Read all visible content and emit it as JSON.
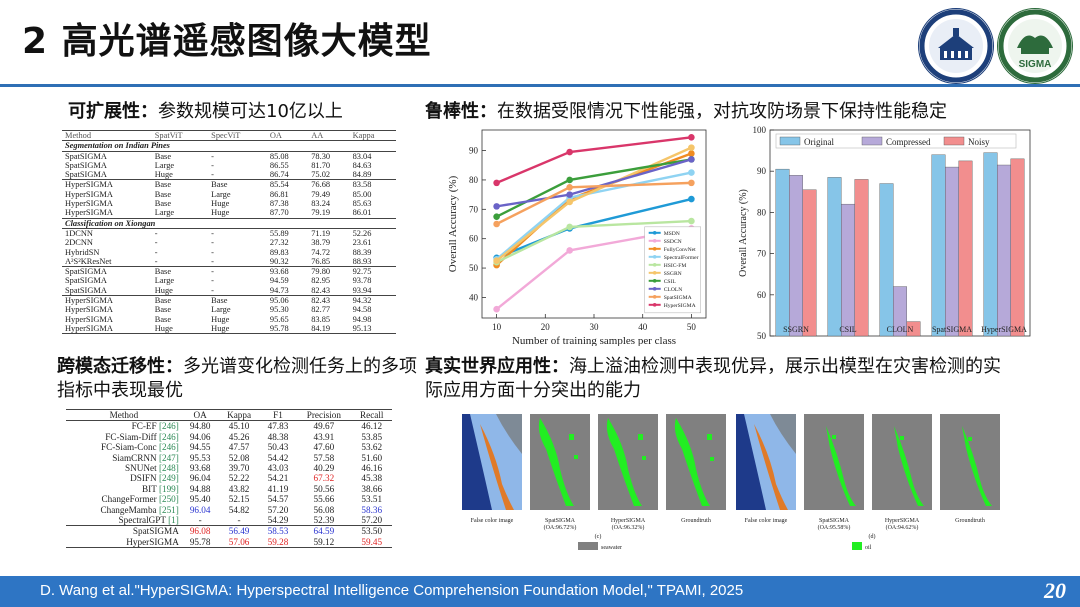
{
  "title": "2 高光谱遥感图像大模型",
  "colors": {
    "accent": "#2e75c4",
    "red": "#e02424",
    "blue": "#2a34d0"
  },
  "logos": [
    {
      "name": "whu-logo"
    },
    {
      "name": "sigma-logo",
      "text": "SIGMA"
    }
  ],
  "scalability": {
    "label": "可扩展性：",
    "text": "参数规模可达10亿以上"
  },
  "table1": {
    "headers": [
      "Method",
      "SpatViT",
      "SpecViT",
      "OA",
      "AA",
      "Kappa"
    ],
    "sec1": "Segmentation on Indian Pines",
    "rows1": [
      [
        "SpatSIGMA",
        "Base",
        "-",
        "85.08",
        "78.30",
        "83.04"
      ],
      [
        "SpatSIGMA",
        "Large",
        "-",
        "86.55",
        "81.70",
        "84.63"
      ],
      [
        "SpatSIGMA",
        "Huge",
        "-",
        "86.74",
        "75.02",
        "84.89"
      ],
      [
        "HyperSIGMA",
        "Base",
        "Base",
        "85.54",
        "76.68",
        "83.58"
      ],
      [
        "HyperSIGMA",
        "Base",
        "Large",
        "86.81",
        "79.49",
        "85.00"
      ],
      [
        "HyperSIGMA",
        "Base",
        "Huge",
        "87.38",
        "83.24",
        "85.63"
      ],
      [
        "HyperSIGMA",
        "Large",
        "Huge",
        "87.70",
        "79.19",
        "86.01"
      ]
    ],
    "sec2": "Classification on Xiongan",
    "rows2": [
      [
        "1DCNN",
        "-",
        "-",
        "55.89",
        "71.19",
        "52.26"
      ],
      [
        "2DCNN",
        "-",
        "-",
        "27.32",
        "38.79",
        "23.61"
      ],
      [
        "HybridSN",
        "-",
        "-",
        "89.83",
        "74.72",
        "88.39"
      ],
      [
        "A²S²KResNet",
        "-",
        "-",
        "90.32",
        "76.85",
        "88.93"
      ],
      [
        "SpatSIGMA",
        "Base",
        "-",
        "93.68",
        "79.80",
        "92.75"
      ],
      [
        "SpatSIGMA",
        "Large",
        "-",
        "94.59",
        "82.95",
        "93.78"
      ],
      [
        "SpatSIGMA",
        "Huge",
        "-",
        "94.73",
        "82.43",
        "93.94"
      ],
      [
        "HyperSIGMA",
        "Base",
        "Base",
        "95.06",
        "82.43",
        "94.32"
      ],
      [
        "HyperSIGMA",
        "Base",
        "Large",
        "95.30",
        "82.77",
        "94.58"
      ],
      [
        "HyperSIGMA",
        "Base",
        "Huge",
        "95.65",
        "83.85",
        "94.98"
      ],
      [
        "HyperSIGMA",
        "Huge",
        "Huge",
        "95.78",
        "84.19",
        "95.13"
      ]
    ]
  },
  "crossmodal": {
    "label": "跨模态迁移性：",
    "text": "多光谱变化检测任务上的多项指标中表现最优"
  },
  "table2": {
    "headers": [
      "Method",
      "OA",
      "Kappa",
      "F1",
      "Precision",
      "Recall"
    ],
    "rows": [
      {
        "m": "FC-EF",
        "ref": "246",
        "v": [
          "94.80",
          "45.10",
          "47.83",
          "49.67",
          "46.12"
        ]
      },
      {
        "m": "FC-Siam-Diff",
        "ref": "246",
        "v": [
          "94.06",
          "45.26",
          "48.38",
          "43.91",
          "53.85"
        ]
      },
      {
        "m": "FC-Siam-Conc",
        "ref": "246",
        "v": [
          "94.55",
          "47.57",
          "50.43",
          "47.60",
          "53.62"
        ]
      },
      {
        "m": "SiamCRNN",
        "ref": "247",
        "v": [
          "95.53",
          "52.08",
          "54.42",
          "57.58",
          "51.60"
        ]
      },
      {
        "m": "SNUNet",
        "ref": "248",
        "v": [
          "93.68",
          "39.70",
          "43.03",
          "40.29",
          "46.16"
        ]
      },
      {
        "m": "DSIFN",
        "ref": "249",
        "v": [
          "96.04",
          "52.22",
          "54.21",
          "67.32",
          "45.38"
        ]
      },
      {
        "m": "BIT",
        "ref": "199",
        "v": [
          "94.88",
          "43.82",
          "41.19",
          "50.56",
          "38.66"
        ]
      },
      {
        "m": "ChangeFormer",
        "ref": "250",
        "v": [
          "95.40",
          "52.15",
          "54.57",
          "55.66",
          "53.51"
        ]
      },
      {
        "m": "ChangeMamba",
        "ref": "251",
        "v": [
          "96.04",
          "54.82",
          "57.20",
          "56.08",
          "58.36"
        ]
      },
      {
        "m": "SpectralGPT",
        "ref": "1",
        "v": [
          "-",
          "-",
          "54.29",
          "52.39",
          "57.20"
        ]
      },
      {
        "m": "SpatSIGMA",
        "ref": "",
        "v": [
          "96.08",
          "56.49",
          "58.53",
          "64.59",
          "53.50"
        ]
      },
      {
        "m": "HyperSIGMA",
        "ref": "",
        "v": [
          "95.78",
          "57.06",
          "59.28",
          "59.12",
          "59.45"
        ]
      }
    ]
  },
  "robustness": {
    "label": "鲁棒性：",
    "text": "在数据受限情况下性能强，对抗攻防场景下保持性能稳定"
  },
  "chart_data": [
    {
      "type": "line",
      "title": "",
      "xlabel": "Number of training samples per class",
      "ylabel": "Overall Accuracy (%)",
      "x": [
        10,
        25,
        50
      ],
      "xticks": [
        10,
        20,
        30,
        40,
        50
      ],
      "yticks": [
        40,
        50,
        60,
        70,
        80,
        90
      ],
      "xlim": [
        7,
        53
      ],
      "ylim": [
        33,
        97
      ],
      "series": [
        {
          "name": "MSDN",
          "color": "#1f9ad6",
          "values": [
            53.5,
            63.5,
            73.5
          ]
        },
        {
          "name": "SSDCN",
          "color": "#f2a9d8",
          "values": [
            36,
            56,
            63.5
          ]
        },
        {
          "name": "FullyConvNet",
          "color": "#f08c22",
          "values": [
            51,
            73.5,
            89
          ]
        },
        {
          "name": "SpectralFormer",
          "color": "#8fd3f2",
          "values": [
            53,
            74,
            82.5
          ]
        },
        {
          "name": "HSIC-FM",
          "color": "#b9e6a0",
          "values": [
            52,
            64,
            66
          ]
        },
        {
          "name": "SSGRN",
          "color": "#f5c56a",
          "values": [
            52.5,
            72.5,
            91
          ]
        },
        {
          "name": "CSIL",
          "color": "#3b9e3b",
          "values": [
            67.5,
            80,
            87
          ]
        },
        {
          "name": "CLOLN",
          "color": "#6a63c7",
          "values": [
            71,
            75,
            87
          ]
        },
        {
          "name": "SpatSIGMA",
          "color": "#f5a15e",
          "values": [
            65,
            77.5,
            79
          ]
        },
        {
          "name": "HyperSIGMA",
          "color": "#d9366a",
          "values": [
            79,
            89.5,
            94.5
          ]
        }
      ]
    },
    {
      "type": "bar",
      "title": "",
      "xlabel": "",
      "ylabel": "Overall Accuracy (%)",
      "categories": [
        "SSGRN",
        "CSIL",
        "CLOLN",
        "SpatSIGMA",
        "HyperSIGMA"
      ],
      "yticks": [
        50,
        60,
        70,
        80,
        90,
        100
      ],
      "ylim": [
        50,
        100
      ],
      "series": [
        {
          "name": "Original",
          "color": "#86c5e8",
          "values": [
            90.5,
            88.5,
            87,
            94,
            94.5
          ]
        },
        {
          "name": "Compressed",
          "color": "#b6a9d9",
          "values": [
            89,
            82,
            62,
            91,
            91.5
          ]
        },
        {
          "name": "Noisy",
          "color": "#f28e8e",
          "values": [
            85.5,
            88,
            53.5,
            92.5,
            93
          ]
        }
      ]
    }
  ],
  "realworld": {
    "label": "真实世界应用性：",
    "text": "海上溢油检测中表现优异，展示出模型在灾害检测的实际应用方面十分突出的能力"
  },
  "images": {
    "captions": [
      "False color image",
      "SpatSIGMA\n(OA:96.72%)",
      "HyperSIGMA\n(OA:96.32%)",
      "Groundtruth",
      "False color image",
      "SpatSIGMA\n(OA:95.58%)",
      "HyperSIGMA\n(OA:94.62%)",
      "Groundtruth"
    ],
    "sub_a": "(c)",
    "sub_b": "(d)",
    "legend_water": "seawater",
    "legend_oil": "oil"
  },
  "footer": {
    "citation": "D. Wang et al.\"HyperSIGMA: Hyperspectral Intelligence Comprehension Foundation Model,\" TPAMI, 2025",
    "page": "20"
  }
}
